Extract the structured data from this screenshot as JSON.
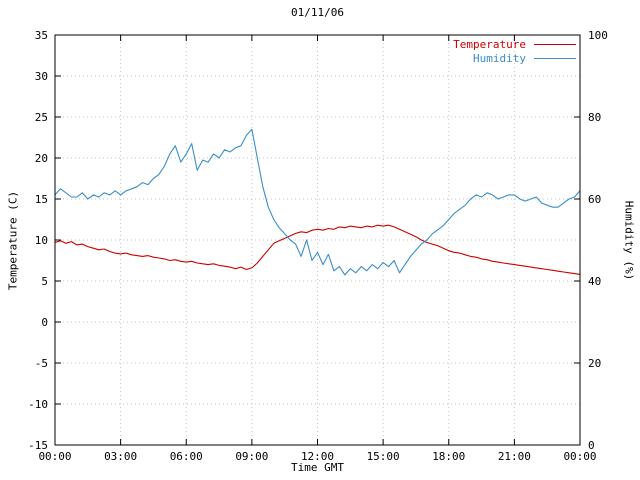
{
  "title": "01/11/06",
  "chart_data": {
    "type": "line",
    "title": "01/11/06",
    "xlabel": "Time GMT",
    "ylabel_left": "Temperature (C)",
    "ylabel_right": "Humidity (%)",
    "x_range": [
      0,
      24
    ],
    "y_left_range": [
      -15,
      35
    ],
    "y_right_range": [
      0,
      100
    ],
    "grid": true,
    "legend_position": "top-right",
    "x_ticks": {
      "values": [
        0,
        3,
        6,
        9,
        12,
        15,
        18,
        21,
        24
      ],
      "labels": [
        "00:00",
        "03:00",
        "06:00",
        "09:00",
        "12:00",
        "15:00",
        "18:00",
        "21:00",
        "00:00"
      ]
    },
    "y_left_ticks": {
      "values": [
        35,
        30,
        25,
        20,
        15,
        10,
        5,
        0,
        -5,
        -10,
        -15
      ],
      "labels": [
        "35",
        "30",
        "25",
        "20",
        "15",
        "10",
        "5",
        "0",
        "-5",
        "-10",
        "-15"
      ]
    },
    "y_right_ticks": {
      "values": [
        100,
        80,
        60,
        40,
        20,
        0
      ],
      "labels": [
        "100",
        "80",
        "60",
        "40",
        "20",
        "0"
      ]
    },
    "series": [
      {
        "name": "Temperature",
        "axis": "left",
        "color": "#cc0000",
        "x_step_hours": 0.25,
        "values": [
          9.7,
          9.9,
          9.6,
          9.8,
          9.4,
          9.5,
          9.2,
          9.0,
          8.8,
          8.9,
          8.6,
          8.4,
          8.3,
          8.4,
          8.2,
          8.1,
          8.0,
          8.1,
          7.9,
          7.8,
          7.7,
          7.5,
          7.6,
          7.4,
          7.3,
          7.4,
          7.2,
          7.1,
          7.0,
          7.1,
          6.9,
          6.8,
          6.7,
          6.5,
          6.7,
          6.4,
          6.6,
          7.2,
          8.0,
          8.8,
          9.6,
          9.9,
          10.2,
          10.5,
          10.8,
          11.0,
          10.9,
          11.2,
          11.3,
          11.2,
          11.4,
          11.3,
          11.6,
          11.5,
          11.7,
          11.6,
          11.5,
          11.7,
          11.6,
          11.8,
          11.7,
          11.8,
          11.6,
          11.3,
          11.0,
          10.7,
          10.4,
          10.0,
          9.7,
          9.5,
          9.3,
          9.0,
          8.7,
          8.5,
          8.4,
          8.2,
          8.0,
          7.9,
          7.7,
          7.6,
          7.4,
          7.3,
          7.2,
          7.1,
          7.0,
          6.9,
          6.8,
          6.7,
          6.6,
          6.5,
          6.4,
          6.3,
          6.2,
          6.1,
          6.0,
          5.9,
          5.8
        ]
      },
      {
        "name": "Humidity",
        "axis": "right",
        "color": "#3a8ec8",
        "x_step_hours": 0.25,
        "values": [
          61.0,
          62.5,
          61.5,
          60.5,
          60.5,
          61.5,
          60.0,
          61.0,
          60.5,
          61.5,
          61.0,
          62.0,
          61.0,
          62.0,
          62.5,
          63.0,
          64.0,
          63.5,
          65.0,
          66.0,
          68.0,
          71.0,
          73.0,
          69.0,
          71.0,
          73.5,
          67.0,
          69.5,
          69.0,
          71.0,
          70.0,
          72.0,
          71.5,
          72.5,
          73.0,
          75.5,
          77.0,
          70.0,
          63.0,
          58.0,
          55.0,
          53.0,
          51.5,
          50.0,
          49.0,
          46.0,
          50.0,
          45.0,
          47.0,
          44.0,
          46.5,
          42.5,
          43.5,
          41.5,
          43.0,
          42.0,
          43.5,
          42.5,
          44.0,
          43.0,
          44.5,
          43.5,
          45.0,
          42.0,
          44.0,
          46.0,
          47.5,
          49.0,
          50.0,
          51.5,
          52.5,
          53.5,
          55.0,
          56.5,
          57.5,
          58.5,
          60.0,
          61.0,
          60.5,
          61.5,
          61.0,
          60.0,
          60.5,
          61.0,
          61.0,
          60.0,
          59.5,
          60.0,
          60.5,
          59.0,
          58.5,
          58.0,
          58.0,
          59.0,
          60.0,
          60.5,
          62.0
        ]
      }
    ]
  },
  "colors": {
    "axis": "#000000",
    "grid": "#c4c4c4",
    "background": "#ffffff"
  }
}
